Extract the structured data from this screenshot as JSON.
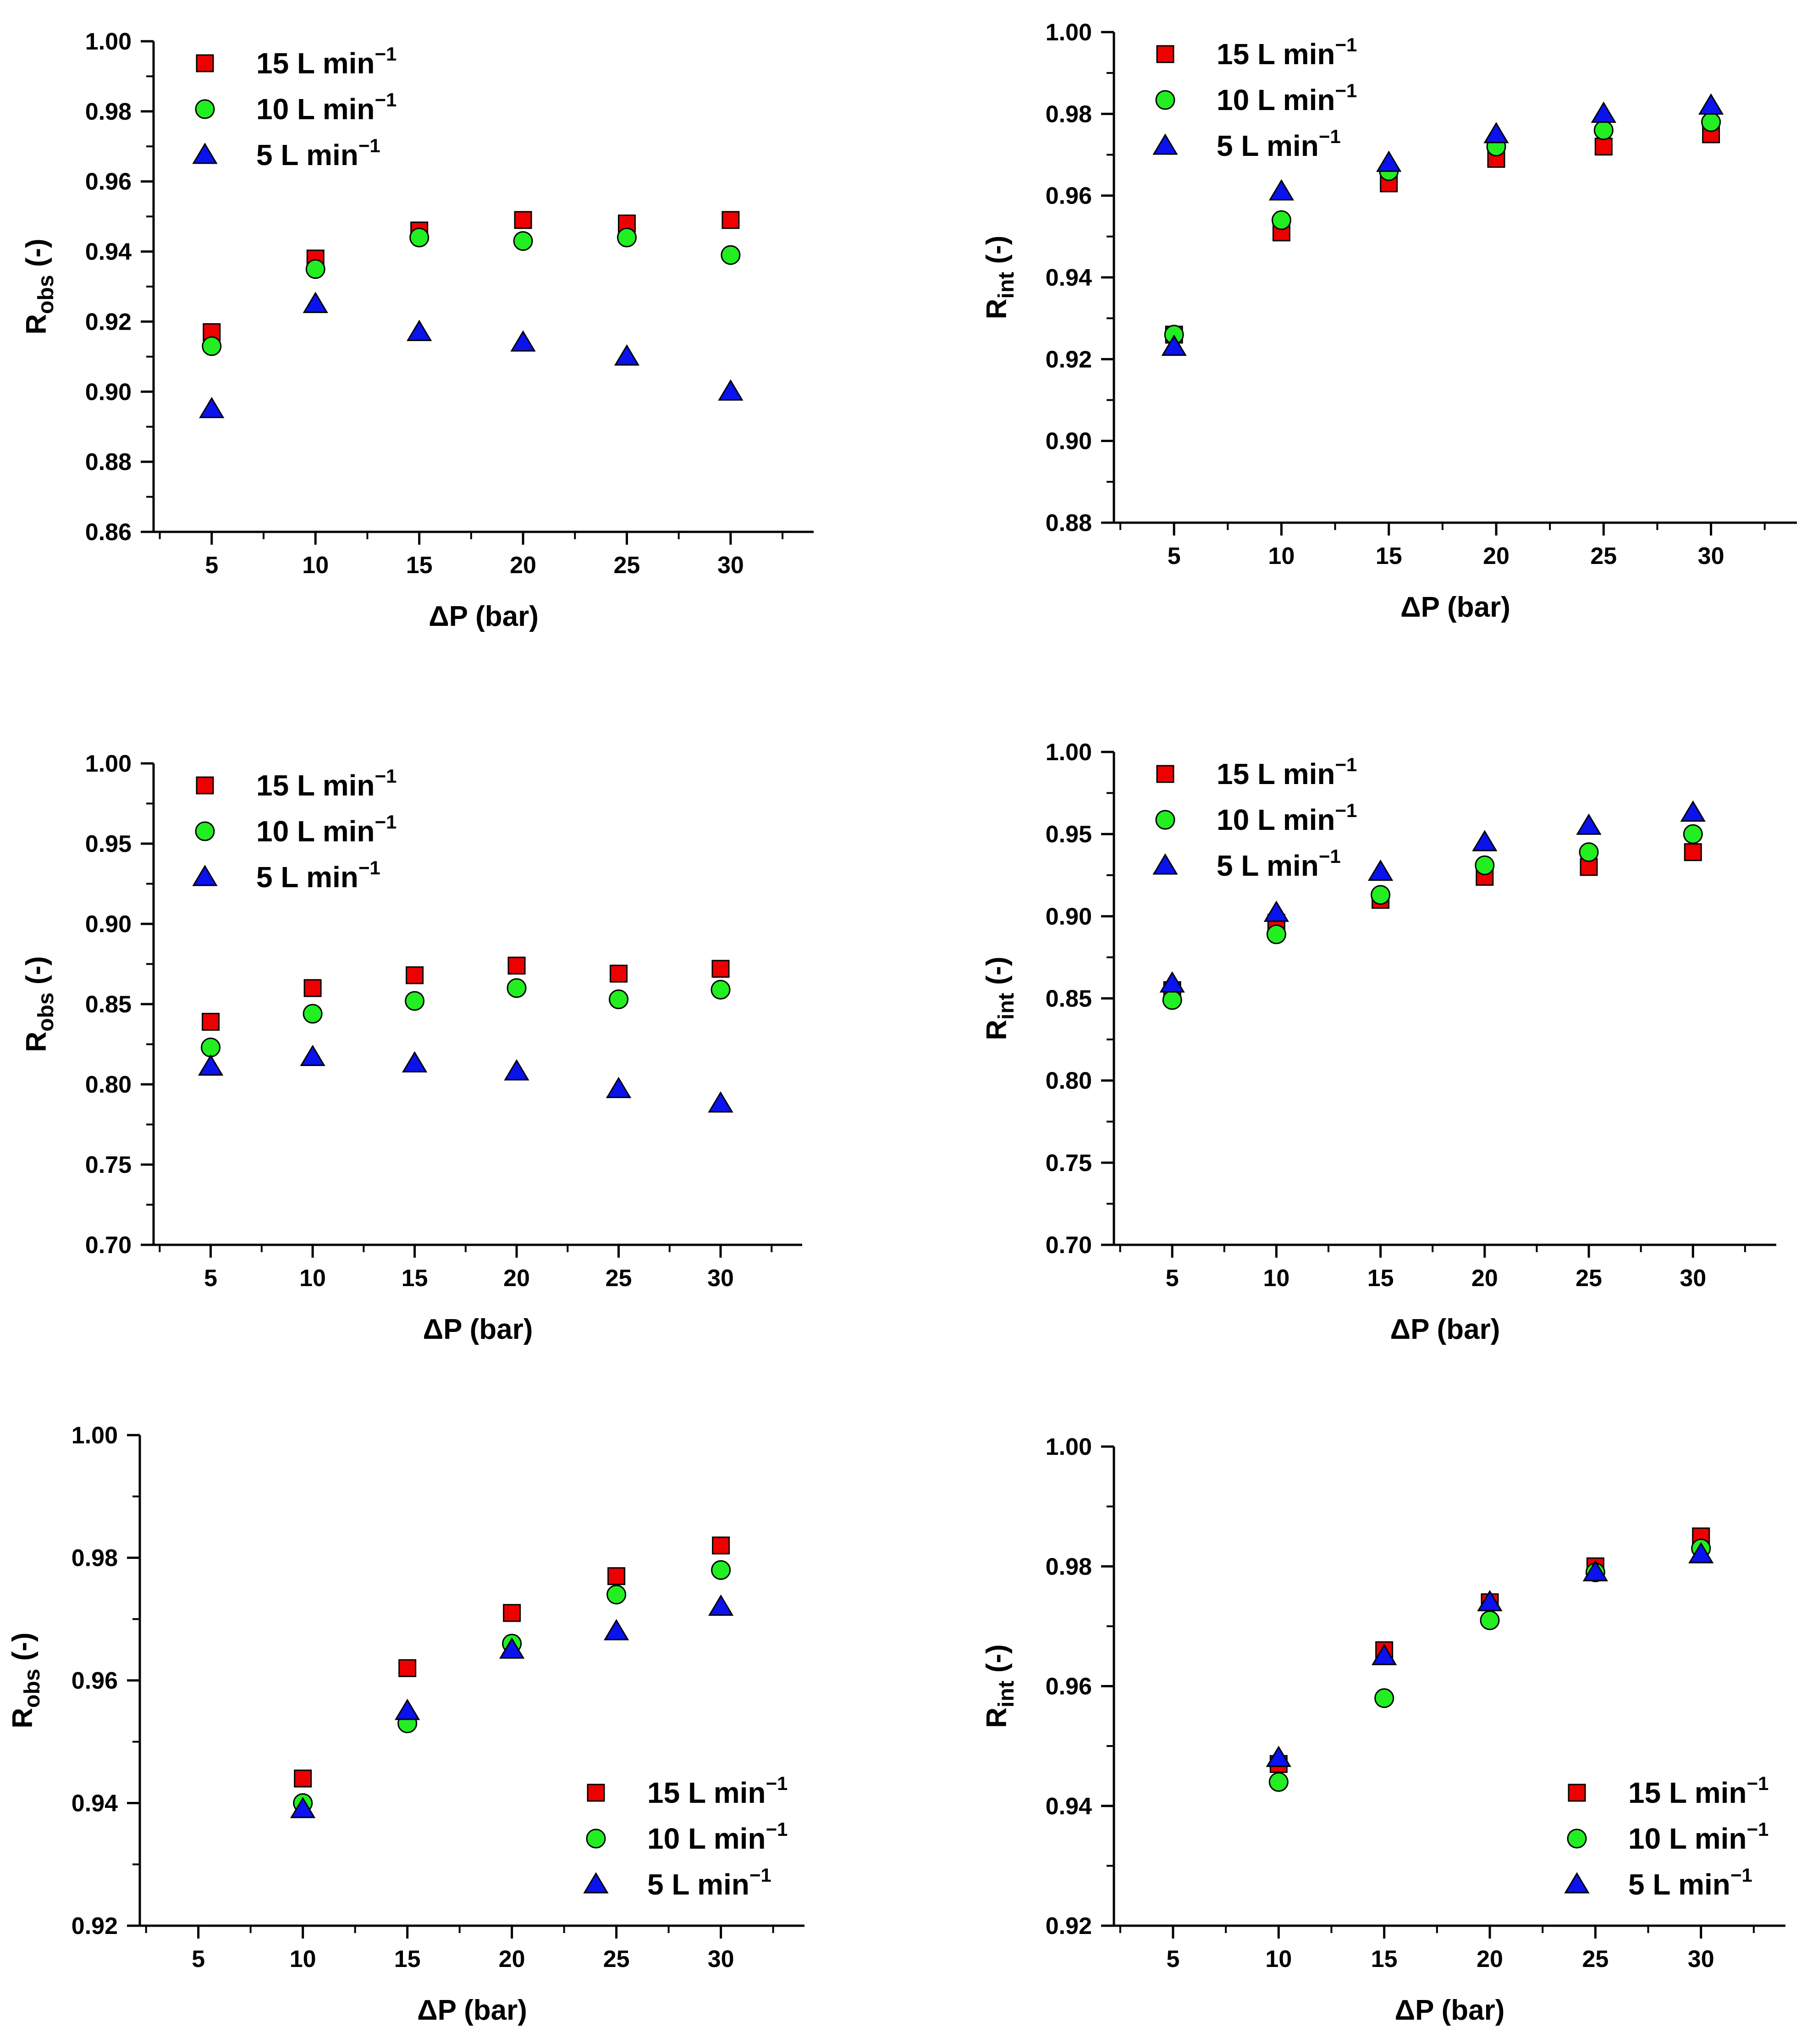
{
  "legend": {
    "series": [
      {
        "name": "15 L min",
        "sup": "−1",
        "marker": "square",
        "color": "#ee0000"
      },
      {
        "name": "10 L min",
        "sup": "−1",
        "marker": "circle",
        "color": "#22ee22"
      },
      {
        "name": "5 L min",
        "sup": "−1",
        "marker": "triangle",
        "color": "#0a12ee"
      }
    ]
  },
  "chart_data": [
    {
      "type": "scatter",
      "xlabel": "ΔP (bar)",
      "ylabel": {
        "main": "R",
        "sub": "obs",
        "suffix": " (-)"
      },
      "xlim": [
        2.2,
        34
      ],
      "ylim": [
        0.86,
        1.0
      ],
      "xticks": [
        5,
        10,
        15,
        20,
        25,
        30
      ],
      "ytick_labels": [
        "0.86",
        "0.88",
        "0.90",
        "0.92",
        "0.94",
        "0.96",
        "0.98",
        "1.00"
      ],
      "legend_position": "top-left",
      "series": [
        {
          "name": "15 L min−1",
          "x": [
            5,
            10,
            15,
            20,
            25,
            30
          ],
          "y": [
            0.917,
            0.938,
            0.946,
            0.949,
            0.948,
            0.949
          ]
        },
        {
          "name": "10 L min−1",
          "x": [
            5,
            10,
            15,
            20,
            25,
            30
          ],
          "y": [
            0.913,
            0.935,
            0.944,
            0.943,
            0.944,
            0.939
          ]
        },
        {
          "name": "5 L min−1",
          "x": [
            5,
            10,
            15,
            20,
            25,
            30
          ],
          "y": [
            0.895,
            0.925,
            0.917,
            0.914,
            0.91,
            0.9
          ]
        }
      ]
    },
    {
      "type": "scatter",
      "xlabel": "ΔP (bar)",
      "ylabel": {
        "main": "R",
        "sub": "int",
        "suffix": " (-)"
      },
      "xlim": [
        2.2,
        34
      ],
      "ylim": [
        0.88,
        1.0
      ],
      "xticks": [
        5,
        10,
        15,
        20,
        25,
        30
      ],
      "ytick_labels": [
        "0.88",
        "0.90",
        "0.92",
        "0.94",
        "0.96",
        "0.98",
        "1.00"
      ],
      "legend_position": "top-left",
      "series": [
        {
          "name": "15 L min−1",
          "x": [
            5,
            10,
            15,
            20,
            25,
            30
          ],
          "y": [
            0.926,
            0.951,
            0.963,
            0.969,
            0.972,
            0.975
          ]
        },
        {
          "name": "10 L min−1",
          "x": [
            5,
            10,
            15,
            20,
            25,
            30
          ],
          "y": [
            0.926,
            0.954,
            0.966,
            0.972,
            0.976,
            0.978
          ]
        },
        {
          "name": "5 L min−1",
          "x": [
            5,
            10,
            15,
            20,
            25,
            30
          ],
          "y": [
            0.923,
            0.961,
            0.968,
            0.975,
            0.98,
            0.982
          ]
        }
      ]
    },
    {
      "type": "scatter",
      "xlabel": "ΔP (bar)",
      "ylabel": {
        "main": "R",
        "sub": "obs",
        "suffix": " (-)"
      },
      "xlim": [
        2.2,
        34
      ],
      "ylim": [
        0.7,
        1.0
      ],
      "xticks": [
        5,
        10,
        15,
        20,
        25,
        30
      ],
      "ytick_labels": [
        "0.70",
        "0.75",
        "0.80",
        "0.85",
        "0.90",
        "0.95",
        "1.00"
      ],
      "legend_position": "top-left",
      "series": [
        {
          "name": "15 L min−1",
          "x": [
            5,
            10,
            15,
            20,
            25,
            30
          ],
          "y": [
            0.839,
            0.86,
            0.868,
            0.874,
            0.869,
            0.872
          ]
        },
        {
          "name": "10 L min−1",
          "x": [
            5,
            10,
            15,
            20,
            25,
            30
          ],
          "y": [
            0.823,
            0.844,
            0.852,
            0.86,
            0.853,
            0.859
          ]
        },
        {
          "name": "5 L min−1",
          "x": [
            5,
            10,
            15,
            20,
            25,
            30
          ],
          "y": [
            0.811,
            0.817,
            0.813,
            0.808,
            0.797,
            0.788
          ]
        }
      ]
    },
    {
      "type": "scatter",
      "xlabel": "ΔP (bar)",
      "ylabel": {
        "main": "R",
        "sub": "int",
        "suffix": " (-)"
      },
      "xlim": [
        2.2,
        34
      ],
      "ylim": [
        0.7,
        1.0
      ],
      "xticks": [
        5,
        10,
        15,
        20,
        25,
        30
      ],
      "ytick_labels": [
        "0.70",
        "0.75",
        "0.80",
        "0.85",
        "0.90",
        "0.95",
        "1.00"
      ],
      "legend_position": "top-left",
      "series": [
        {
          "name": "15 L min−1",
          "x": [
            5,
            10,
            15,
            20,
            25,
            30
          ],
          "y": [
            0.855,
            0.896,
            0.91,
            0.924,
            0.93,
            0.939
          ]
        },
        {
          "name": "10 L min−1",
          "x": [
            5,
            10,
            15,
            20,
            25,
            30
          ],
          "y": [
            0.849,
            0.889,
            0.913,
            0.931,
            0.939,
            0.95
          ]
        },
        {
          "name": "5 L min−1",
          "x": [
            5,
            10,
            15,
            20,
            25,
            30
          ],
          "y": [
            0.859,
            0.902,
            0.927,
            0.945,
            0.955,
            0.963
          ]
        }
      ]
    },
    {
      "type": "scatter",
      "xlabel": "ΔP (bar)",
      "ylabel": {
        "main": "R",
        "sub": "obs",
        "suffix": " (-)"
      },
      "xlim": [
        2.2,
        34
      ],
      "ylim": [
        0.92,
        1.0
      ],
      "xticks": [
        5,
        10,
        15,
        20,
        25,
        30
      ],
      "ytick_labels": [
        "0.92",
        "0.94",
        "0.96",
        "0.98",
        "1.00"
      ],
      "legend_position": "bottom-right",
      "series": [
        {
          "name": "15 L min−1",
          "x": [
            10,
            15,
            20,
            25,
            30
          ],
          "y": [
            0.944,
            0.962,
            0.971,
            0.977,
            0.982
          ]
        },
        {
          "name": "10 L min−1",
          "x": [
            10,
            15,
            20,
            25,
            30
          ],
          "y": [
            0.94,
            0.953,
            0.966,
            0.974,
            0.978
          ]
        },
        {
          "name": "5 L min−1",
          "x": [
            10,
            15,
            20,
            25,
            30
          ],
          "y": [
            0.939,
            0.955,
            0.965,
            0.968,
            0.972
          ]
        }
      ]
    },
    {
      "type": "scatter",
      "xlabel": "ΔP (bar)",
      "ylabel": {
        "main": "R",
        "sub": "int",
        "suffix": " (-)"
      },
      "xlim": [
        2.2,
        34
      ],
      "ylim": [
        0.92,
        1.0
      ],
      "xticks": [
        5,
        10,
        15,
        20,
        25,
        30
      ],
      "ytick_labels": [
        "0.92",
        "0.94",
        "0.96",
        "0.98",
        "1.00"
      ],
      "legend_position": "bottom-right",
      "series": [
        {
          "name": "15 L min−1",
          "x": [
            10,
            15,
            20,
            25,
            30
          ],
          "y": [
            0.947,
            0.966,
            0.974,
            0.98,
            0.985
          ]
        },
        {
          "name": "10 L min−1",
          "x": [
            10,
            15,
            20,
            25,
            30
          ],
          "y": [
            0.944,
            0.958,
            0.971,
            0.979,
            0.983
          ]
        },
        {
          "name": "5 L min−1",
          "x": [
            10,
            15,
            20,
            25,
            30
          ],
          "y": [
            0.948,
            0.965,
            0.974,
            0.979,
            0.982
          ]
        }
      ]
    }
  ]
}
